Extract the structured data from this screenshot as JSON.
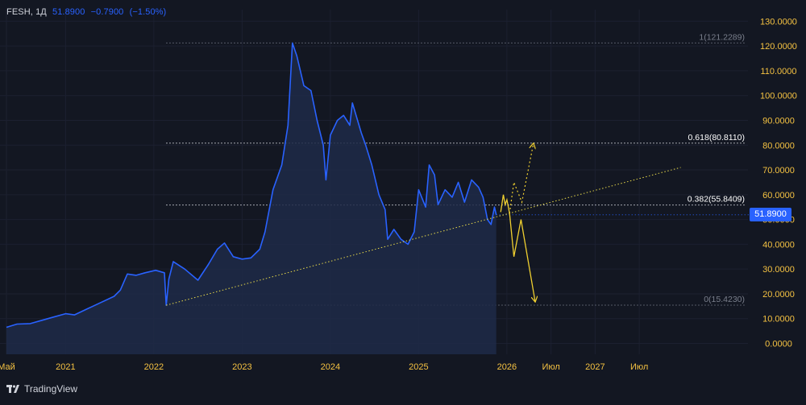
{
  "header": {
    "symbol": "FESH",
    "interval": "1Д",
    "last": "51.8900",
    "change": "−0.7900",
    "change_pct": "(−1.50%)"
  },
  "brand": {
    "name": "TradingView"
  },
  "colors": {
    "background": "#131722",
    "price_line": "#2962ff",
    "fill": "#1e2a48",
    "axis_text": "#f5c242",
    "projection": "#f0d030",
    "fib_line": "#d1d4dc",
    "badge": "#2962ff"
  },
  "chart_data": {
    "type": "line",
    "title": "",
    "xlabel": "",
    "ylabel": "",
    "ylim": [
      0,
      130
    ],
    "y_ticks": [
      "0.0000",
      "10.0000",
      "20.0000",
      "30.0000",
      "40.0000",
      "50.0000",
      "60.0000",
      "70.0000",
      "80.0000",
      "90.0000",
      "100.0000",
      "110.0000",
      "120.0000",
      "130.0000"
    ],
    "x_ticks": [
      {
        "t": 2020.33,
        "label": "Май"
      },
      {
        "t": 2021.0,
        "label": "2021"
      },
      {
        "t": 2022.0,
        "label": "2022"
      },
      {
        "t": 2023.0,
        "label": "2023"
      },
      {
        "t": 2024.0,
        "label": "2024"
      },
      {
        "t": 2025.0,
        "label": "2025"
      },
      {
        "t": 2026.0,
        "label": "2026"
      },
      {
        "t": 2026.5,
        "label": "Июл"
      },
      {
        "t": 2027.0,
        "label": "2027"
      },
      {
        "t": 2027.5,
        "label": "Июл"
      }
    ],
    "current_price": "51.8900",
    "series": [
      {
        "points": [
          [
            2020.33,
            6.5
          ],
          [
            2020.45,
            7.8
          ],
          [
            2020.6,
            8.0
          ],
          [
            2020.72,
            9.2
          ],
          [
            2020.85,
            10.5
          ],
          [
            2021.0,
            12.0
          ],
          [
            2021.1,
            11.5
          ],
          [
            2021.25,
            14.0
          ],
          [
            2021.4,
            16.5
          ],
          [
            2021.55,
            19.0
          ],
          [
            2021.62,
            21.5
          ],
          [
            2021.7,
            28.0
          ],
          [
            2021.8,
            27.5
          ],
          [
            2021.9,
            28.5
          ],
          [
            2022.02,
            29.5
          ],
          [
            2022.12,
            28.5
          ],
          [
            2022.14,
            15.4
          ],
          [
            2022.17,
            26.0
          ],
          [
            2022.22,
            33.0
          ],
          [
            2022.35,
            30.0
          ],
          [
            2022.5,
            25.5
          ],
          [
            2022.62,
            32.0
          ],
          [
            2022.72,
            38.0
          ],
          [
            2022.8,
            40.5
          ],
          [
            2022.9,
            35.0
          ],
          [
            2023.0,
            34.0
          ],
          [
            2023.1,
            34.5
          ],
          [
            2023.2,
            38.0
          ],
          [
            2023.26,
            45.0
          ],
          [
            2023.35,
            62.0
          ],
          [
            2023.45,
            72.0
          ],
          [
            2023.52,
            88.0
          ],
          [
            2023.57,
            121.2
          ],
          [
            2023.62,
            116.0
          ],
          [
            2023.7,
            104.0
          ],
          [
            2023.78,
            102.0
          ],
          [
            2023.85,
            90.0
          ],
          [
            2023.92,
            80.0
          ],
          [
            2023.95,
            66.0
          ],
          [
            2024.0,
            84.0
          ],
          [
            2024.08,
            90.0
          ],
          [
            2024.15,
            92.0
          ],
          [
            2024.22,
            88.0
          ],
          [
            2024.25,
            97.0
          ],
          [
            2024.35,
            85.0
          ],
          [
            2024.4,
            80.0
          ],
          [
            2024.47,
            72.0
          ],
          [
            2024.55,
            60.0
          ],
          [
            2024.62,
            54.0
          ],
          [
            2024.65,
            42.0
          ],
          [
            2024.72,
            46.0
          ],
          [
            2024.8,
            42.0
          ],
          [
            2024.88,
            40.0
          ],
          [
            2024.95,
            45.0
          ],
          [
            2025.0,
            62.0
          ],
          [
            2025.08,
            55.0
          ],
          [
            2025.12,
            72.0
          ],
          [
            2025.18,
            68.0
          ],
          [
            2025.22,
            56.0
          ],
          [
            2025.3,
            62.0
          ],
          [
            2025.38,
            59.0
          ],
          [
            2025.45,
            65.0
          ],
          [
            2025.52,
            57.0
          ],
          [
            2025.6,
            66.0
          ],
          [
            2025.68,
            63.0
          ],
          [
            2025.73,
            59.0
          ],
          [
            2025.78,
            50.0
          ],
          [
            2025.82,
            48.0
          ],
          [
            2025.86,
            55.0
          ],
          [
            2025.88,
            51.89
          ]
        ]
      }
    ],
    "fibonacci": [
      {
        "label": "1(121.2289)",
        "value": 121.2289
      },
      {
        "label": "0.618(80.8110)",
        "value": 80.811
      },
      {
        "label": "0.382(55.8409)",
        "value": 55.8409
      },
      {
        "label": "0(15.4230)",
        "value": 15.423
      }
    ],
    "trendline": {
      "from": [
        2022.14,
        15.4
      ],
      "to": [
        2027.97,
        71.0
      ]
    },
    "projection_main": [
      [
        2025.93,
        53.0
      ],
      [
        2025.96,
        60.0
      ],
      [
        2025.98,
        56.0
      ],
      [
        2026.0,
        58.0
      ],
      [
        2026.03,
        52.5
      ],
      [
        2026.08,
        35.0
      ],
      [
        2026.16,
        50.0
      ],
      [
        2026.32,
        17.0
      ]
    ],
    "projection_alt": [
      [
        2026.03,
        52.5
      ],
      [
        2026.08,
        65.0
      ],
      [
        2026.17,
        57.0
      ],
      [
        2026.3,
        80.5
      ]
    ]
  }
}
